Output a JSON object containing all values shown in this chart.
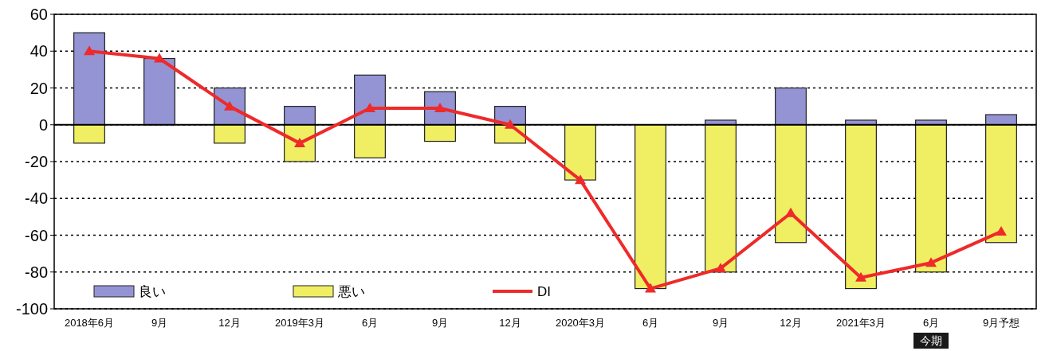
{
  "chart_data": {
    "type": "bar",
    "categories": [
      "2018年6月",
      "9月",
      "12月",
      "2019年3月",
      "6月",
      "9月",
      "12月",
      "2020年3月",
      "6月",
      "9月",
      "12月",
      "2021年3月",
      "6月",
      "9月予想"
    ],
    "series": [
      {
        "name": "良い",
        "color": "#9494d4",
        "values": [
          50,
          36,
          20,
          10,
          27,
          18,
          10,
          0,
          0,
          2.5,
          20,
          2.5,
          2.5,
          5.5
        ]
      },
      {
        "name": "悪い",
        "color": "#f0ef64",
        "values": [
          -10,
          0,
          -10,
          -20,
          -18,
          -9,
          -10,
          -30,
          -89,
          -80,
          -64,
          -89,
          -80,
          -64
        ]
      },
      {
        "name": "DI",
        "type": "line",
        "color": "#ee2a2a",
        "values": [
          40,
          36,
          10,
          -10,
          9,
          9,
          0,
          -30,
          -89,
          -78,
          -48,
          -83,
          -75,
          -58
        ]
      }
    ],
    "stacked": true,
    "ylim": [
      -100,
      60
    ],
    "yticks": [
      -100,
      -80,
      -60,
      -40,
      -20,
      0,
      20,
      40,
      60
    ],
    "grid": "y",
    "legend": "bottom left",
    "marker": "triangle",
    "line_style": "solid",
    "annotations": [
      "今期"
    ]
  }
}
